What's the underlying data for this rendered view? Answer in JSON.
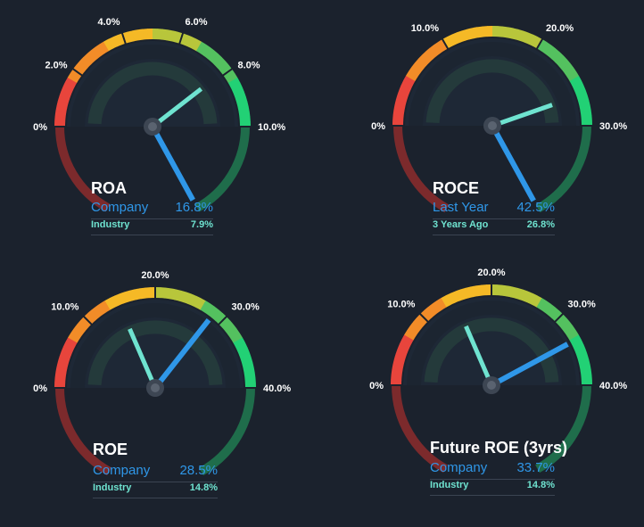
{
  "colors": {
    "background": "#1b222d",
    "primary_needle": "#2f97e8",
    "secondary_needle": "#6fe3d0",
    "arc_stops": [
      "#e8453c",
      "#f28c28",
      "#f5b926",
      "#b8c63b",
      "#54c15f",
      "#22d175"
    ]
  },
  "chart_data": [
    {
      "type": "gauge",
      "title": "ROA",
      "ticks": [
        "0%",
        "2.0%",
        "4.0%",
        "6.0%",
        "8.0%",
        "10.0%"
      ],
      "range": [
        0,
        10
      ],
      "series": [
        {
          "name": "Company",
          "value": 16.8,
          "display": "16.8%",
          "role": "primary"
        },
        {
          "name": "Industry",
          "value": 7.9,
          "display": "7.9%",
          "role": "secondary"
        }
      ]
    },
    {
      "type": "gauge",
      "title": "ROCE",
      "ticks": [
        "0%",
        "10.0%",
        "20.0%",
        "30.0%"
      ],
      "range": [
        0,
        30
      ],
      "series": [
        {
          "name": "Last Year",
          "value": 42.5,
          "display": "42.5%",
          "role": "primary"
        },
        {
          "name": "3 Years Ago",
          "value": 26.8,
          "display": "26.8%",
          "role": "secondary"
        }
      ]
    },
    {
      "type": "gauge",
      "title": "ROE",
      "ticks": [
        "0%",
        "10.0%",
        "20.0%",
        "30.0%",
        "40.0%"
      ],
      "range": [
        0,
        40
      ],
      "series": [
        {
          "name": "Company",
          "value": 28.5,
          "display": "28.5%",
          "role": "primary"
        },
        {
          "name": "Industry",
          "value": 14.8,
          "display": "14.8%",
          "role": "secondary"
        }
      ]
    },
    {
      "type": "gauge",
      "title": "Future ROE (3yrs)",
      "ticks": [
        "0%",
        "10.0%",
        "20.0%",
        "30.0%",
        "40.0%"
      ],
      "range": [
        0,
        40
      ],
      "series": [
        {
          "name": "Company",
          "value": 33.7,
          "display": "33.7%",
          "role": "primary"
        },
        {
          "name": "Industry",
          "value": 14.8,
          "display": "14.8%",
          "role": "secondary"
        }
      ]
    }
  ]
}
